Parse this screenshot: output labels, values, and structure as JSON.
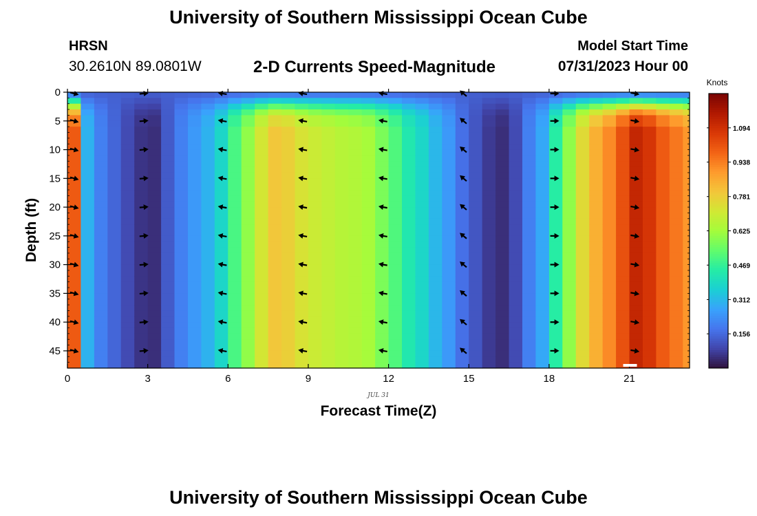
{
  "header": {
    "title": "University of Southern Mississippi Ocean Cube",
    "station": "HRSN",
    "coords": "30.2610N  89.0801W",
    "subtitle": "2-D Currents Speed-Magnitude",
    "start_label": "Model Start Time",
    "start_value": "07/31/2023 Hour 00"
  },
  "footer": {
    "title": "University of Southern Mississippi Ocean Cube"
  },
  "chart_data": {
    "type": "heatmap",
    "xlabel": "Forecast Time(Z)",
    "ylabel": "Depth (ft)",
    "date_label": "JUL 31",
    "xlim": [
      0,
      23.25
    ],
    "ylim": [
      0,
      48
    ],
    "x_ticks": [
      0,
      3,
      6,
      9,
      12,
      15,
      18,
      21
    ],
    "y_ticks": [
      0,
      5,
      10,
      15,
      20,
      25,
      30,
      35,
      40,
      45
    ],
    "colorbar": {
      "label": "Knots",
      "min": 0.0,
      "max": 1.25,
      "ticks": [
        0.156,
        0.312,
        0.469,
        0.625,
        0.781,
        0.938,
        1.094
      ],
      "colors": [
        "#30123b",
        "#4145ab",
        "#4675ed",
        "#39a2fc",
        "#1bcfd4",
        "#24eca6",
        "#61fc6c",
        "#a4fc3b",
        "#d1e834",
        "#f3c63a",
        "#fe9b2d",
        "#f36315",
        "#d93806",
        "#b11901",
        "#7a0402"
      ]
    },
    "hours": [
      0,
      0.5,
      1,
      1.5,
      2,
      2.5,
      3,
      3.5,
      4,
      4.5,
      5,
      5.5,
      6,
      6.5,
      7,
      7.5,
      8,
      8.5,
      9,
      9.5,
      10,
      10.5,
      11,
      11.5,
      12,
      12.5,
      13,
      13.5,
      14,
      14.5,
      15,
      15.5,
      16,
      16.5,
      17,
      17.5,
      18,
      18.5,
      19,
      19.5,
      20,
      20.5,
      21,
      21.5,
      22,
      22.5,
      23
    ],
    "speed_deep": [
      1.0,
      0.3,
      0.2,
      0.15,
      0.1,
      0.06,
      0.05,
      0.13,
      0.2,
      0.25,
      0.3,
      0.38,
      0.5,
      0.6,
      0.72,
      0.8,
      0.78,
      0.73,
      0.7,
      0.68,
      0.66,
      0.65,
      0.63,
      0.57,
      0.51,
      0.43,
      0.38,
      0.31,
      0.25,
      0.17,
      0.12,
      0.07,
      0.05,
      0.1,
      0.2,
      0.28,
      0.45,
      0.6,
      0.75,
      0.85,
      0.92,
      1.02,
      1.12,
      1.08,
      1.0,
      0.95,
      0.9
    ],
    "arrow_depths": [
      5,
      10,
      15,
      20,
      25,
      30,
      35,
      40,
      45
    ],
    "arrow_hours": [
      0.25,
      2.85,
      5.8,
      8.8,
      11.8,
      14.8,
      18.2,
      21.2
    ],
    "arrow_angles_deg": [
      -15,
      5,
      170,
      170,
      170,
      140,
      0,
      -10
    ]
  }
}
